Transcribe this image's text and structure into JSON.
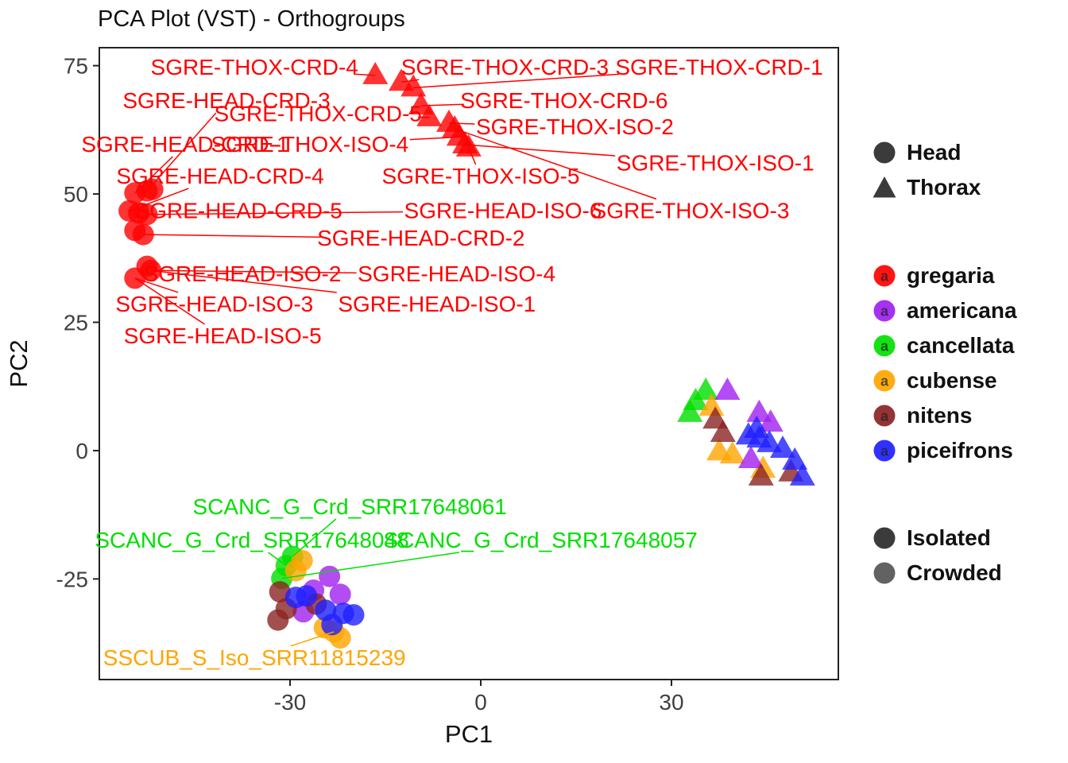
{
  "chart_data": {
    "type": "scatter",
    "title": "PCA Plot (VST) - Orthogroups",
    "xlabel": "PC1",
    "ylabel": "PC2",
    "xlim": [
      -60,
      56.25
    ],
    "ylim": [
      -44.6,
      78.5
    ],
    "xticks": [
      -30,
      0,
      30
    ],
    "yticks": [
      -25,
      0,
      25,
      50,
      75
    ],
    "grid": false,
    "shapes": {
      "Head": "circle",
      "Thorax": "triangle"
    },
    "species_colors": {
      "gregaria": "#FF0000",
      "americana": "#A020F0",
      "cancellata": "#00DF00",
      "cubense": "#FFA500",
      "nitens": "#8B2323",
      "piceifrons": "#1F1FFF"
    },
    "point_opacity": 0.8,
    "points": [
      {
        "species": "gregaria",
        "tissue": "Head",
        "x": -52.5,
        "y": 50.6
      },
      {
        "species": "gregaria",
        "tissue": "Head",
        "x": -54.4,
        "y": 50.2
      },
      {
        "species": "gregaria",
        "tissue": "Head",
        "x": -51.6,
        "y": 50.9
      },
      {
        "species": "gregaria",
        "tissue": "Head",
        "x": -55.3,
        "y": 46.7
      },
      {
        "species": "gregaria",
        "tissue": "Head",
        "x": -53.8,
        "y": 46.3
      },
      {
        "species": "gregaria",
        "tissue": "Head",
        "x": -52.5,
        "y": 46.0
      },
      {
        "species": "gregaria",
        "tissue": "Head",
        "x": -54.4,
        "y": 42.9
      },
      {
        "species": "gregaria",
        "tissue": "Head",
        "x": -53.1,
        "y": 42.1
      },
      {
        "species": "gregaria",
        "tissue": "Head",
        "x": -52.5,
        "y": 35.9
      },
      {
        "species": "gregaria",
        "tissue": "Head",
        "x": -54.4,
        "y": 33.6
      },
      {
        "species": "gregaria",
        "tissue": "Head",
        "x": -51.9,
        "y": 35.1
      },
      {
        "species": "gregaria",
        "tissue": "Thorax",
        "x": -16.6,
        "y": 73.1
      },
      {
        "species": "gregaria",
        "tissue": "Thorax",
        "x": -12.5,
        "y": 71.8
      },
      {
        "species": "gregaria",
        "tissue": "Thorax",
        "x": -10.6,
        "y": 70.7
      },
      {
        "species": "gregaria",
        "tissue": "Thorax",
        "x": -9.4,
        "y": 67.2
      },
      {
        "species": "gregaria",
        "tissue": "Thorax",
        "x": -8.1,
        "y": 64.9
      },
      {
        "species": "gregaria",
        "tissue": "Thorax",
        "x": -5.0,
        "y": 63.8
      },
      {
        "species": "gregaria",
        "tissue": "Thorax",
        "x": -4.1,
        "y": 62.7
      },
      {
        "species": "gregaria",
        "tissue": "Thorax",
        "x": -3.4,
        "y": 61.1
      },
      {
        "species": "gregaria",
        "tissue": "Thorax",
        "x": -2.5,
        "y": 59.6
      },
      {
        "species": "gregaria",
        "tissue": "Thorax",
        "x": -1.9,
        "y": 59.0
      },
      {
        "species": "cancellata",
        "tissue": "Head",
        "x": -29.6,
        "y": -20.6
      },
      {
        "species": "cancellata",
        "tissue": "Head",
        "x": -30.6,
        "y": -22.4
      },
      {
        "species": "cancellata",
        "tissue": "Head",
        "x": -31.3,
        "y": -24.9
      },
      {
        "species": "cubense",
        "tissue": "Head",
        "x": -28.1,
        "y": -21.4
      },
      {
        "species": "cubense",
        "tissue": "Head",
        "x": -29.1,
        "y": -23.4
      },
      {
        "species": "cubense",
        "tissue": "Head",
        "x": -23.1,
        "y": -35.3
      },
      {
        "species": "cubense",
        "tissue": "Head",
        "x": -24.6,
        "y": -34.5
      },
      {
        "species": "cubense",
        "tissue": "Head",
        "x": -22.1,
        "y": -36.5
      },
      {
        "species": "americana",
        "tissue": "Head",
        "x": -23.8,
        "y": -24.5
      },
      {
        "species": "americana",
        "tissue": "Head",
        "x": -22.1,
        "y": -28.0
      },
      {
        "species": "americana",
        "tissue": "Head",
        "x": -26.3,
        "y": -27.2
      },
      {
        "species": "americana",
        "tissue": "Head",
        "x": -27.9,
        "y": -31.4
      },
      {
        "species": "nitens",
        "tissue": "Head",
        "x": -31.6,
        "y": -27.5
      },
      {
        "species": "nitens",
        "tissue": "Head",
        "x": -30.6,
        "y": -30.8
      },
      {
        "species": "nitens",
        "tissue": "Head",
        "x": -31.9,
        "y": -33.0
      },
      {
        "species": "nitens",
        "tissue": "Head",
        "x": -25.9,
        "y": -29.9
      },
      {
        "species": "piceifrons",
        "tissue": "Head",
        "x": -27.4,
        "y": -28.3
      },
      {
        "species": "piceifrons",
        "tissue": "Head",
        "x": -24.4,
        "y": -31.1
      },
      {
        "species": "piceifrons",
        "tissue": "Head",
        "x": -21.6,
        "y": -31.7
      },
      {
        "species": "piceifrons",
        "tissue": "Head",
        "x": -20.0,
        "y": -32.0
      },
      {
        "species": "piceifrons",
        "tissue": "Head",
        "x": -23.4,
        "y": -33.9
      },
      {
        "species": "piceifrons",
        "tissue": "Head",
        "x": -29.1,
        "y": -28.6
      },
      {
        "species": "cancellata",
        "tissue": "Thorax",
        "x": 33.8,
        "y": 9.6
      },
      {
        "species": "cancellata",
        "tissue": "Thorax",
        "x": 32.9,
        "y": 7.3
      },
      {
        "species": "cancellata",
        "tissue": "Thorax",
        "x": 35.4,
        "y": 11.6
      },
      {
        "species": "cubense",
        "tissue": "Thorax",
        "x": 36.3,
        "y": 8.5
      },
      {
        "species": "cubense",
        "tissue": "Thorax",
        "x": 39.6,
        "y": -0.8
      },
      {
        "species": "cubense",
        "tissue": "Thorax",
        "x": 44.4,
        "y": -3.6
      },
      {
        "species": "cubense",
        "tissue": "Thorax",
        "x": 37.5,
        "y": -0.2
      },
      {
        "species": "americana",
        "tissue": "Thorax",
        "x": 38.8,
        "y": 11.6
      },
      {
        "species": "americana",
        "tissue": "Thorax",
        "x": 43.8,
        "y": 7.3
      },
      {
        "species": "americana",
        "tissue": "Thorax",
        "x": 45.6,
        "y": 5.4
      },
      {
        "species": "americana",
        "tissue": "Thorax",
        "x": 42.5,
        "y": -1.7
      },
      {
        "species": "nitens",
        "tissue": "Thorax",
        "x": 36.9,
        "y": 6.0
      },
      {
        "species": "nitens",
        "tissue": "Thorax",
        "x": 38.1,
        "y": 3.4
      },
      {
        "species": "nitens",
        "tissue": "Thorax",
        "x": 48.8,
        "y": -4.3
      },
      {
        "species": "nitens",
        "tissue": "Thorax",
        "x": 44.1,
        "y": -5.1
      },
      {
        "species": "piceifrons",
        "tissue": "Thorax",
        "x": 42.1,
        "y": 2.9
      },
      {
        "species": "piceifrons",
        "tissue": "Thorax",
        "x": 43.8,
        "y": 2.3
      },
      {
        "species": "piceifrons",
        "tissue": "Thorax",
        "x": 45.4,
        "y": 1.4
      },
      {
        "species": "piceifrons",
        "tissue": "Thorax",
        "x": 47.5,
        "y": 0.3
      },
      {
        "species": "piceifrons",
        "tissue": "Thorax",
        "x": 49.4,
        "y": -2.0
      },
      {
        "species": "piceifrons",
        "tissue": "Thorax",
        "x": 43.4,
        "y": 4.2
      },
      {
        "species": "piceifrons",
        "tissue": "Thorax",
        "x": 50.6,
        "y": -5.1
      }
    ],
    "labels": [
      {
        "text": "SGRE-THOX-CRD-4",
        "x": -35.6,
        "y": 74.6,
        "tx": -16.6,
        "ty": 73.1,
        "color": "#FF0000"
      },
      {
        "text": "SGRE-THOX-CRD-3",
        "x": 3.8,
        "y": 74.6,
        "tx": -12.5,
        "ty": 71.8,
        "color": "#FF0000"
      },
      {
        "text": "SGRE-THOX-CRD-1",
        "x": 37.5,
        "y": 74.6,
        "tx": -10.6,
        "ty": 70.7,
        "color": "#FF0000"
      },
      {
        "text": "SGRE-HEAD-CRD-3",
        "x": -40.0,
        "y": 68.1,
        "tx": -52.5,
        "ty": 50.6,
        "color": "#FF0000"
      },
      {
        "text": "SGRE-THOX-CRD-5",
        "x": -25.6,
        "y": 65.6,
        "tx": -8.1,
        "ty": 64.9,
        "color": "#FF0000"
      },
      {
        "text": "SGRE-THOX-CRD-6",
        "x": 13.1,
        "y": 68.1,
        "tx": -9.4,
        "ty": 67.2,
        "color": "#FF0000"
      },
      {
        "text": "SGRE-HEAD-CRD-1",
        "x": -46.5,
        "y": 59.6,
        "tx": -54.4,
        "ty": 50.2,
        "color": "#FF0000"
      },
      {
        "text": "SGRE-THOX-ISO-4",
        "x": -26.9,
        "y": 59.6,
        "tx": -3.4,
        "ty": 61.1,
        "color": "#FF0000"
      },
      {
        "text": "SGRE-THOX-ISO-2",
        "x": 14.8,
        "y": 63.0,
        "tx": -5.0,
        "ty": 63.8,
        "color": "#FF0000"
      },
      {
        "text": "SGRE-THOX-ISO-1",
        "x": 36.9,
        "y": 56.0,
        "tx": -2.5,
        "ty": 59.6,
        "color": "#FF0000"
      },
      {
        "text": "SGRE-HEAD-CRD-4",
        "x": -41.0,
        "y": 53.4,
        "tx": -55.3,
        "ty": 46.7,
        "color": "#FF0000"
      },
      {
        "text": "SGRE-THOX-ISO-5",
        "x": 0.0,
        "y": 53.4,
        "tx": -1.9,
        "ty": 59.0,
        "color": "#FF0000"
      },
      {
        "text": "SGRE-HEAD-CRD-5",
        "x": -38.1,
        "y": 46.7,
        "tx": -53.8,
        "ty": 46.3,
        "color": "#FF0000"
      },
      {
        "text": "SGRE-HEAD-ISO-6",
        "x": 3.5,
        "y": 46.7,
        "tx": -52.5,
        "ty": 46.0,
        "color": "#FF0000"
      },
      {
        "text": "SGRE-THOX-ISO-3",
        "x": 33.0,
        "y": 46.7,
        "tx": -4.1,
        "ty": 62.7,
        "color": "#FF0000"
      },
      {
        "text": "SGRE-HEAD-CRD-2",
        "x": -9.4,
        "y": 41.3,
        "tx": -53.1,
        "ty": 42.1,
        "color": "#FF0000"
      },
      {
        "text": "SGRE-HEAD-ISO-2",
        "x": -37.5,
        "y": 34.4,
        "tx": -52.5,
        "ty": 35.9,
        "color": "#FF0000"
      },
      {
        "text": "SGRE-HEAD-ISO-4",
        "x": -3.8,
        "y": 34.4,
        "tx": -51.9,
        "ty": 35.1,
        "color": "#FF0000"
      },
      {
        "text": "SGRE-HEAD-ISO-3",
        "x": -41.9,
        "y": 28.5,
        "tx": -54.4,
        "ty": 33.6,
        "color": "#FF0000"
      },
      {
        "text": "SGRE-HEAD-ISO-1",
        "x": -6.9,
        "y": 28.5,
        "tx": -51.9,
        "ty": 35.1,
        "color": "#FF0000"
      },
      {
        "text": "SGRE-HEAD-ISO-5",
        "x": -40.6,
        "y": 22.3,
        "tx": -54.4,
        "ty": 33.6,
        "color": "#FF0000"
      },
      {
        "text": "SCANC_G_Crd_SRR17648061",
        "x": -20.6,
        "y": -11.0,
        "tx": -29.6,
        "ty": -20.6,
        "color": "#00DF00"
      },
      {
        "text": "SCANC_G_Crd_SRR17648048",
        "x": -36.0,
        "y": -17.5,
        "tx": -30.6,
        "ty": -22.4,
        "color": "#00DF00"
      },
      {
        "text": "SCANC_G_Crd_SRR17648057",
        "x": 9.4,
        "y": -17.5,
        "tx": -31.3,
        "ty": -24.9,
        "color": "#00DF00"
      },
      {
        "text": "SSCUB_S_Iso_SRR11815239",
        "x": -35.6,
        "y": -40.4,
        "tx": -23.1,
        "ty": -35.3,
        "color": "#FFA500"
      }
    ]
  },
  "legend": {
    "key_letter": "a",
    "shape_color": "#3B3B3B",
    "alpha_color": "#3B3B3B",
    "shape_items": [
      {
        "label": "Head",
        "shape": "circle"
      },
      {
        "label": "Thorax",
        "shape": "triangle"
      }
    ],
    "species_items": [
      {
        "label": "gregaria",
        "color": "#FF0000"
      },
      {
        "label": "americana",
        "color": "#A020F0"
      },
      {
        "label": "cancellata",
        "color": "#00DF00"
      },
      {
        "label": "cubense",
        "color": "#FFA500"
      },
      {
        "label": "nitens",
        "color": "#8B2323"
      },
      {
        "label": "piceifrons",
        "color": "#1F1FFF"
      }
    ],
    "alpha_items": [
      {
        "label": "Isolated",
        "opacity": 1
      },
      {
        "label": "Crowded",
        "opacity": 0.8
      }
    ]
  }
}
